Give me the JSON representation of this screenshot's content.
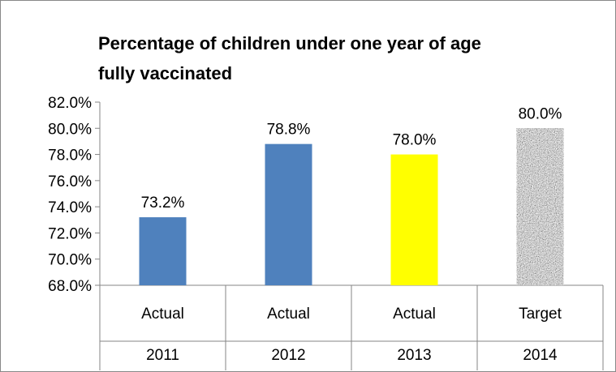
{
  "chart_data": {
    "type": "bar",
    "title_lines": [
      "Percentage of children under one year of age",
      "fully vaccinated"
    ],
    "categories": [
      {
        "level1": "Actual",
        "level2": "2011"
      },
      {
        "level1": "Actual",
        "level2": "2012"
      },
      {
        "level1": "Actual",
        "level2": "2013"
      },
      {
        "level1": "Target",
        "level2": "2014"
      }
    ],
    "values": [
      73.2,
      78.8,
      78.0,
      80.0
    ],
    "data_labels": [
      "73.2%",
      "78.8%",
      "78.0%",
      "80.0%"
    ],
    "bar_styles": [
      "solid",
      "solid",
      "solid",
      "granite-texture"
    ],
    "bar_colors": [
      "#4f81bd",
      "#4f81bd",
      "#ffff00",
      "#9a9a9a"
    ],
    "ylim": [
      68.0,
      82.0
    ],
    "yticks": [
      68.0,
      70.0,
      72.0,
      74.0,
      76.0,
      78.0,
      80.0,
      82.0
    ],
    "ytick_labels": [
      "68.0%",
      "70.0%",
      "72.0%",
      "74.0%",
      "76.0%",
      "78.0%",
      "80.0%",
      "82.0%"
    ],
    "xlabel": "",
    "ylabel": "",
    "grid": false,
    "legend": "none"
  }
}
